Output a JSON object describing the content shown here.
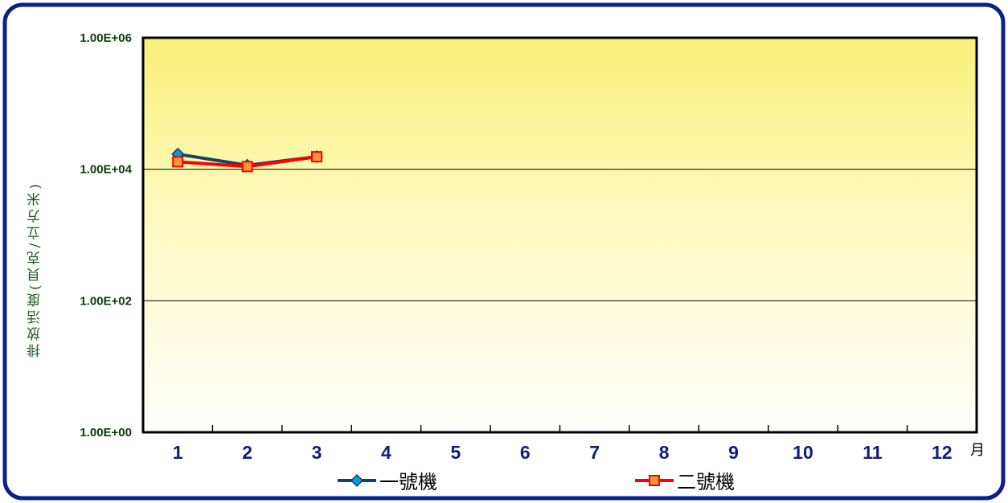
{
  "chart_data": {
    "type": "line",
    "ylabel": "排放活度(貝克/立方米)",
    "xlabel": "月",
    "y_scale": "log",
    "ylim": [
      1,
      1000000
    ],
    "y_ticks": [
      {
        "value": 1,
        "label": "1.00E+00"
      },
      {
        "value": 100,
        "label": "1.00E+02"
      },
      {
        "value": 10000,
        "label": "1.00E+04"
      },
      {
        "value": 1000000,
        "label": "1.00E+06"
      }
    ],
    "categories": [
      "1",
      "2",
      "3",
      "4",
      "5",
      "6",
      "7",
      "8",
      "9",
      "10",
      "11",
      "12"
    ],
    "series": [
      {
        "name": "一號機",
        "color": "#17406e",
        "marker": "diamond",
        "marker_color": "#0a9ad6",
        "values": [
          17000,
          11500,
          15500,
          null,
          null,
          null,
          null,
          null,
          null,
          null,
          null,
          null
        ]
      },
      {
        "name": "二號機",
        "color": "#ff0000",
        "marker": "square",
        "marker_color": "#ff9933",
        "values": [
          13000,
          11000,
          15500,
          null,
          null,
          null,
          null,
          null,
          null,
          null,
          null,
          null
        ]
      }
    ],
    "grid": true,
    "legend_position": "bottom"
  }
}
